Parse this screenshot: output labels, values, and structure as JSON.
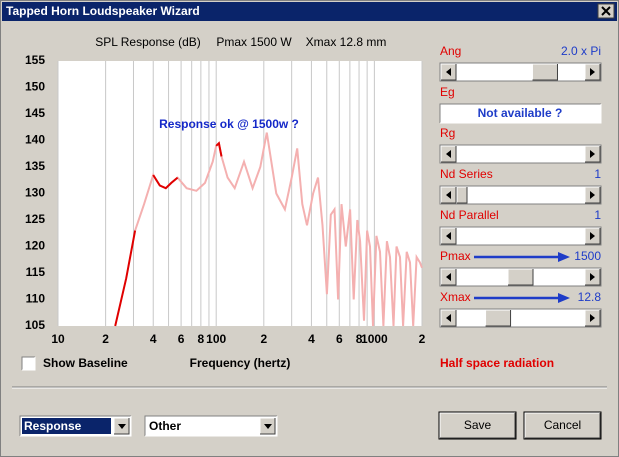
{
  "window": {
    "title": "Tapped Horn Loudspeaker Wizard"
  },
  "chart_data": {
    "type": "line",
    "title": "SPL Response (dB)",
    "title_notes": [
      "Pmax 1500 W",
      "Xmax 12.8 mm"
    ],
    "annotation": "Response ok @ 1500w ?",
    "x_label": "Frequency (hertz)",
    "x_scale": "log",
    "xlim": [
      10,
      2000
    ],
    "ylim": [
      105,
      155
    ],
    "xticks": [
      10,
      {
        "value": 20,
        "label": "2"
      },
      {
        "value": 40,
        "label": "4"
      },
      {
        "value": 60,
        "label": "6"
      },
      {
        "value": 80,
        "label": "8"
      },
      100,
      {
        "value": 200,
        "label": "2"
      },
      {
        "value": 400,
        "label": "4"
      },
      {
        "value": 600,
        "label": "6"
      },
      {
        "value": 800,
        "label": "8"
      },
      1000,
      {
        "value": 2000,
        "label": "2"
      }
    ],
    "yticks": [
      105,
      110,
      115,
      120,
      125,
      130,
      135,
      140,
      145,
      150,
      155
    ],
    "xgrid": [
      10,
      20,
      30,
      40,
      50,
      60,
      70,
      80,
      90,
      100,
      200,
      300,
      400,
      500,
      600,
      700,
      800,
      900,
      1000,
      2000
    ],
    "grid_color": "#c8c8c8",
    "series": [
      {
        "color": "#f4b0b0",
        "x": [
          30.7,
          35,
          40,
          44,
          48,
          52,
          57,
          65,
          75,
          85,
          95,
          100,
          104,
          108,
          118,
          131,
          150,
          170,
          190,
          209,
          240,
          272,
          300,
          325,
          350,
          375,
          410,
          440,
          470,
          501,
          530,
          560,
          590,
          620,
          660,
          702,
          740,
          780,
          812,
          860,
          900,
          938,
          980,
          1030,
          1085,
          1140,
          1200,
          1256,
          1320,
          1380,
          1452,
          1520,
          1600,
          1680,
          1760,
          1850,
          1941,
          2000
        ],
        "values": [
          123,
          128,
          133.5,
          131.5,
          131,
          132,
          133,
          131,
          130.5,
          132,
          136,
          139,
          139.5,
          137,
          133,
          131,
          136,
          131,
          135,
          141.5,
          130,
          127,
          133,
          138.5,
          128,
          124,
          130,
          133,
          124,
          111,
          126,
          127,
          110,
          128,
          120,
          127,
          110,
          125,
          121,
          106,
          123,
          120,
          105,
          122,
          119,
          105,
          121,
          118,
          105,
          120,
          118,
          105,
          119,
          117,
          105,
          118,
          117,
          116
        ]
      },
      {
        "color": "#e00000",
        "x": [
          23,
          27,
          30.7,
          35,
          40,
          44,
          48,
          52,
          57,
          80,
          100,
          104,
          108
        ],
        "values": [
          105,
          114,
          123,
          null,
          133.5,
          131.5,
          131,
          132,
          133,
          null,
          139,
          139.5,
          137
        ]
      }
    ]
  },
  "options": {
    "show_baseline": "Show Baseline"
  },
  "panel": {
    "sliders": [
      {
        "label": "Ang",
        "value": "2.0 x Pi"
      },
      {
        "label": "Eg",
        "field": "Not available ?"
      },
      {
        "label": "Rg"
      },
      {
        "label": "Nd Series",
        "value": 1
      },
      {
        "label": "Nd Parallel",
        "value": 1
      },
      {
        "label": "Pmax",
        "value": 1500
      },
      {
        "label": "Xmax",
        "value": 12.8
      }
    ],
    "note": "Half space radiation"
  },
  "footer": {
    "combos": [
      "Response",
      "Other"
    ],
    "buttons": [
      "Save",
      "Cancel"
    ]
  }
}
